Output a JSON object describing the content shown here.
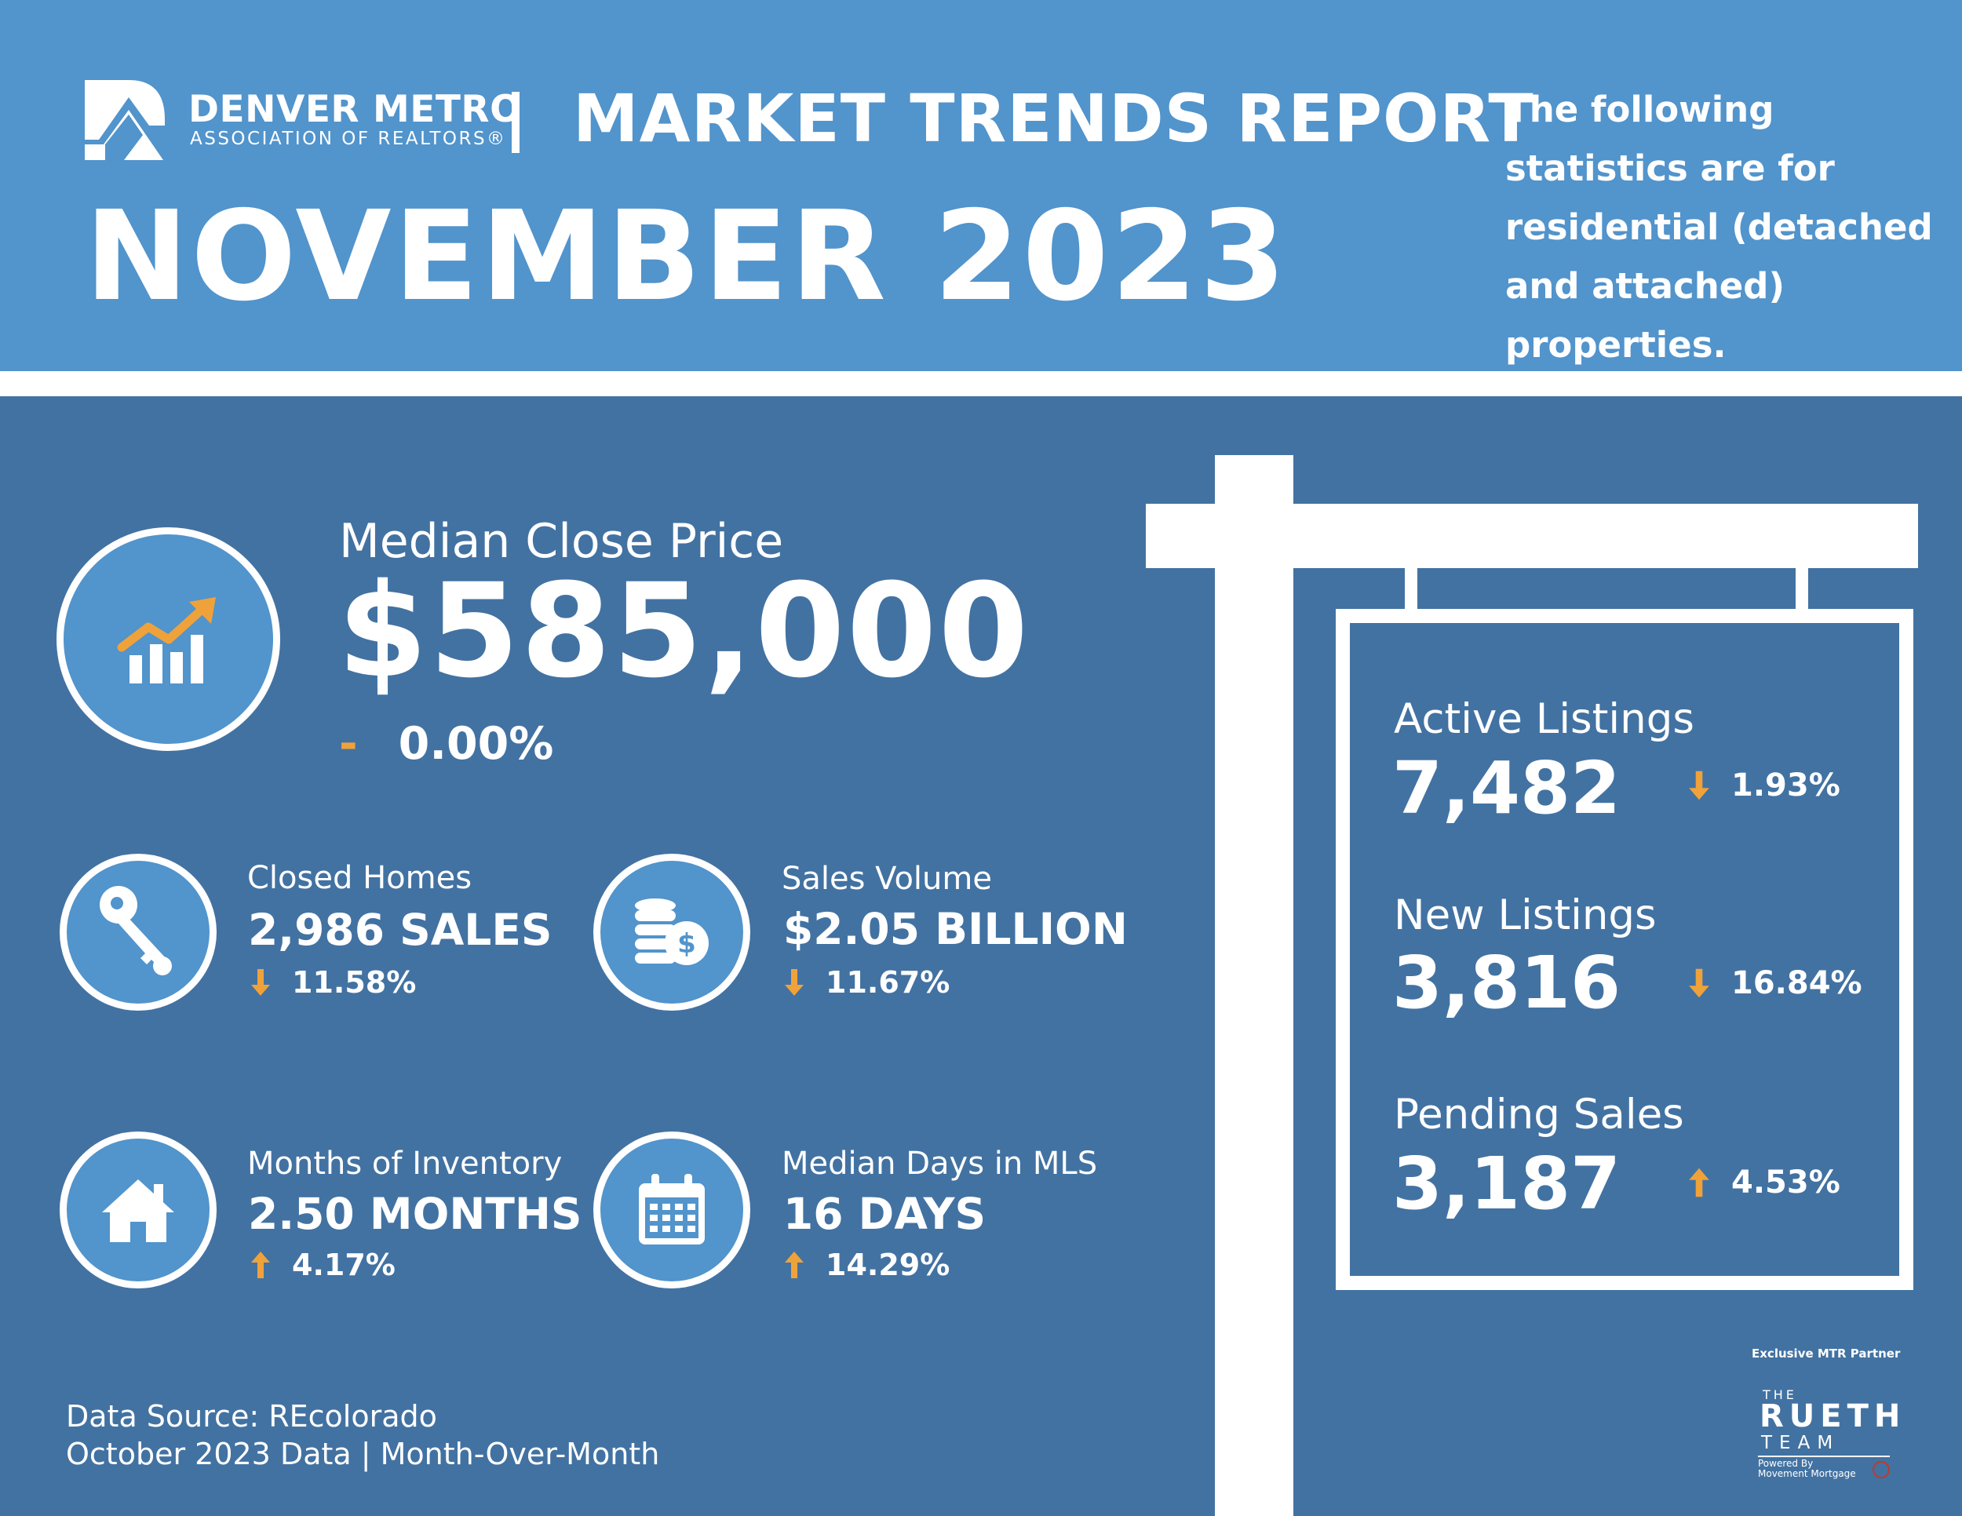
{
  "header": {
    "org_name": "DENVER METRO",
    "org_subtitle": "ASSOCIATION OF REALTORS®",
    "report_title": "MARKET TRENDS REPORT",
    "month": "NOVEMBER 2023",
    "note": "The following statistics are for residential (detached and attached) properties."
  },
  "median_close_price": {
    "label": "Median Close Price",
    "value": "$585,000",
    "change_symbol": "-",
    "change": "0.00%"
  },
  "closed_homes": {
    "label": "Closed Homes",
    "value": "2,986 SALES",
    "direction": "down",
    "change": "11.58%"
  },
  "sales_volume": {
    "label": "Sales Volume",
    "value": "$2.05 BILLION",
    "direction": "down",
    "change": "11.67%"
  },
  "months_of_inventory": {
    "label": "Months of Inventory",
    "value": "2.50 MONTHS",
    "direction": "up",
    "change": "4.17%"
  },
  "median_days_in_mls": {
    "label": "Median Days in MLS",
    "value": "16 DAYS",
    "direction": "up",
    "change": "14.29%"
  },
  "sign": {
    "active_listings": {
      "label": "Active Listings",
      "value": "7,482",
      "direction": "down",
      "change": "1.93%"
    },
    "new_listings": {
      "label": "New Listings",
      "value": "3,816",
      "direction": "down",
      "change": "16.84%"
    },
    "pending_sales": {
      "label": "Pending Sales",
      "value": "3,187",
      "direction": "up",
      "change": "4.53%"
    }
  },
  "footer": {
    "source_line1": "Data Source: REcolorado",
    "source_line2": "October 2023 Data | Month-Over-Month"
  },
  "partner": {
    "label": "Exclusive MTR Partner",
    "the": "THE",
    "name": "RUETH",
    "team": "TEAM",
    "powered_by": "Powered By",
    "powered_company": "Movement Mortgage"
  },
  "colors": {
    "header_blue": "#5294cc",
    "panel_blue": "#4272a2",
    "accent_orange": "#f0a23a"
  }
}
